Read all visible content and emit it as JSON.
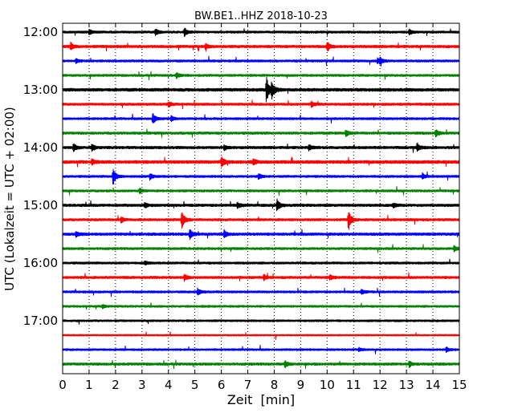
{
  "chart_data": {
    "type": "line",
    "title": "BW.BE1..HHZ 2018-10-23",
    "xlabel": "Zeit  [min]",
    "ylabel": "UTC (Lokalzeit = UTC + 02:00)",
    "xlim": [
      0,
      15
    ],
    "x_ticks": [
      "0",
      "1",
      "2",
      "3",
      "4",
      "5",
      "6",
      "7",
      "8",
      "9",
      "10",
      "11",
      "12",
      "13",
      "14",
      "15"
    ],
    "y_tick_labels": [
      "12:00",
      "13:00",
      "14:00",
      "15:00",
      "16:00",
      "17:00"
    ],
    "x_grid": "dotted vertical lines at each minute",
    "trace_interval_minutes": 15,
    "trace_colors": [
      "#000000",
      "#ff0000",
      "#0000ff",
      "#008000"
    ],
    "series": [
      {
        "start": "12:00",
        "color": "#000000",
        "amplitude": 0.12,
        "events": [
          [
            1.0,
            0.3
          ],
          [
            3.5,
            0.4
          ],
          [
            4.6,
            0.45
          ],
          [
            13.1,
            0.35
          ]
        ]
      },
      {
        "start": "12:15",
        "color": "#ff0000",
        "amplitude": 0.14,
        "events": [
          [
            0.3,
            0.4
          ],
          [
            5.4,
            0.3
          ],
          [
            10.0,
            0.55
          ]
        ]
      },
      {
        "start": "12:30",
        "color": "#0000ff",
        "amplitude": 0.12,
        "events": [
          [
            0.5,
            0.25
          ],
          [
            11.9,
            0.3
          ],
          [
            12.0,
            0.3
          ]
        ]
      },
      {
        "start": "12:45",
        "color": "#008000",
        "amplitude": 0.12,
        "events": [
          [
            4.3,
            0.3
          ]
        ]
      },
      {
        "start": "13:00",
        "color": "#000000",
        "amplitude": 0.16,
        "events": [
          [
            7.7,
            1.4
          ],
          [
            7.9,
            0.9
          ]
        ]
      },
      {
        "start": "13:15",
        "color": "#ff0000",
        "amplitude": 0.13,
        "events": [
          [
            9.4,
            0.3
          ],
          [
            4.0,
            0.25
          ]
        ]
      },
      {
        "start": "13:30",
        "color": "#0000ff",
        "amplitude": 0.12,
        "events": [
          [
            3.4,
            0.6
          ],
          [
            4.1,
            0.3
          ]
        ]
      },
      {
        "start": "13:45",
        "color": "#008000",
        "amplitude": 0.13,
        "events": [
          [
            10.7,
            0.35
          ],
          [
            14.1,
            0.4
          ]
        ]
      },
      {
        "start": "14:00",
        "color": "#000000",
        "amplitude": 0.14,
        "events": [
          [
            0.4,
            0.45
          ],
          [
            1.1,
            0.35
          ],
          [
            6.1,
            0.3
          ],
          [
            9.3,
            0.3
          ],
          [
            13.4,
            0.45
          ]
        ]
      },
      {
        "start": "14:15",
        "color": "#ff0000",
        "amplitude": 0.16,
        "events": [
          [
            6.0,
            0.6
          ],
          [
            1.1,
            0.3
          ],
          [
            7.2,
            0.3
          ]
        ]
      },
      {
        "start": "14:30",
        "color": "#0000ff",
        "amplitude": 0.12,
        "events": [
          [
            1.9,
            1.0
          ],
          [
            3.3,
            0.35
          ],
          [
            7.4,
            0.35
          ],
          [
            13.6,
            0.3
          ]
        ]
      },
      {
        "start": "14:45",
        "color": "#008000",
        "amplitude": 0.12,
        "events": [
          [
            2.9,
            0.3
          ]
        ]
      },
      {
        "start": "15:00",
        "color": "#000000",
        "amplitude": 0.14,
        "events": [
          [
            8.1,
            0.7
          ],
          [
            6.6,
            0.3
          ],
          [
            3.1,
            0.25
          ],
          [
            12.5,
            0.25
          ]
        ]
      },
      {
        "start": "15:15",
        "color": "#ff0000",
        "amplitude": 0.13,
        "events": [
          [
            4.5,
            1.0
          ],
          [
            10.8,
            1.1
          ],
          [
            2.2,
            0.35
          ]
        ]
      },
      {
        "start": "15:30",
        "color": "#0000ff",
        "amplitude": 0.14,
        "events": [
          [
            4.8,
            0.55
          ],
          [
            6.1,
            0.4
          ],
          [
            0.5,
            0.3
          ]
        ]
      },
      {
        "start": "15:45",
        "color": "#008000",
        "amplitude": 0.12,
        "events": [
          [
            14.8,
            0.35
          ]
        ]
      },
      {
        "start": "16:00",
        "color": "#000000",
        "amplitude": 0.12,
        "events": [
          [
            3.1,
            0.2
          ]
        ]
      },
      {
        "start": "16:15",
        "color": "#ff0000",
        "amplitude": 0.13,
        "events": [
          [
            4.6,
            0.35
          ],
          [
            7.6,
            0.35
          ],
          [
            10.1,
            0.3
          ]
        ]
      },
      {
        "start": "16:30",
        "color": "#0000ff",
        "amplitude": 0.12,
        "events": [
          [
            5.1,
            0.4
          ],
          [
            11.3,
            0.25
          ]
        ]
      },
      {
        "start": "16:45",
        "color": "#008000",
        "amplitude": 0.11,
        "events": [
          [
            1.5,
            0.2
          ]
        ]
      },
      {
        "start": "17:00",
        "color": "#000000",
        "amplitude": 0.11,
        "events": []
      },
      {
        "start": "17:15",
        "color": "#ff0000",
        "amplitude": 0.09,
        "events": []
      },
      {
        "start": "17:30",
        "color": "#0000ff",
        "amplitude": 0.11,
        "events": [
          [
            14.5,
            0.3
          ],
          [
            11.2,
            0.2
          ]
        ]
      },
      {
        "start": "17:45",
        "color": "#008000",
        "amplitude": 0.13,
        "events": [
          [
            8.4,
            0.35
          ],
          [
            13.1,
            0.35
          ]
        ]
      }
    ]
  }
}
